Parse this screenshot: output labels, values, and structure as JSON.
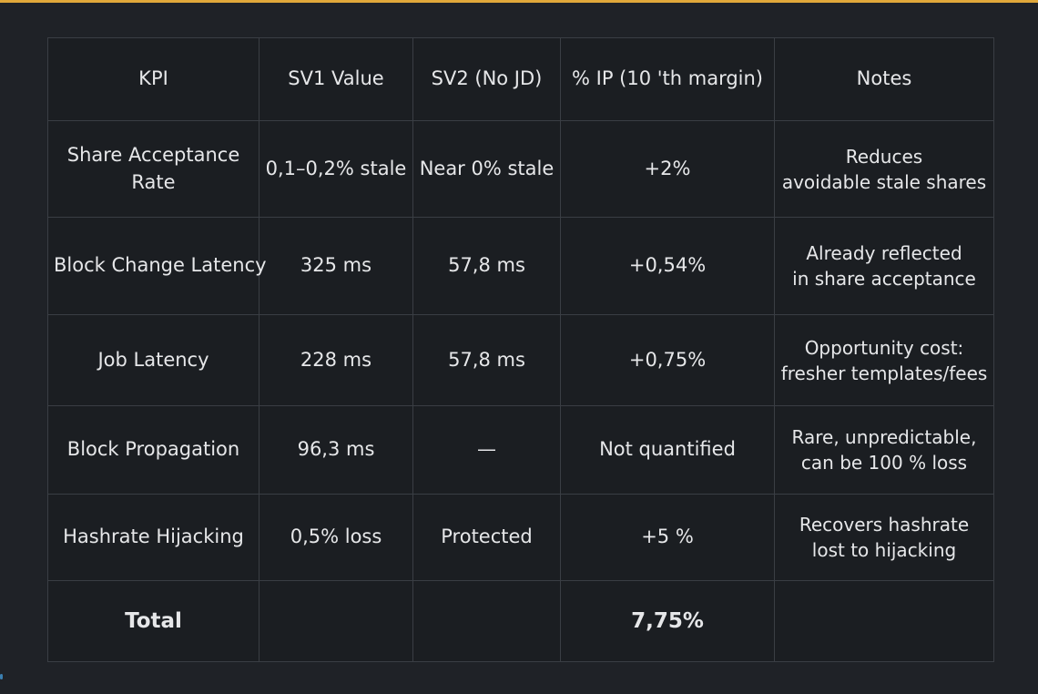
{
  "table": {
    "headers": [
      "KPI",
      "SV1 Value",
      "SV2 (No JD)",
      "% IP (10 'th margin)",
      "Notes"
    ],
    "rows": [
      {
        "kpi": [
          "Share Acceptance",
          "Rate"
        ],
        "sv1": "0,1–0,2% stale",
        "sv2": "Near 0% stale",
        "ip": "+2%",
        "notes": [
          "Reduces",
          "avoidable stale shares"
        ]
      },
      {
        "kpi": [
          "Block Change Latency"
        ],
        "sv1": "325 ms",
        "sv2": "57,8 ms",
        "ip": "+0,54%",
        "notes": [
          "Already reflected",
          "in share acceptance"
        ]
      },
      {
        "kpi": [
          "Job Latency"
        ],
        "sv1": "228 ms",
        "sv2": "57,8 ms",
        "ip": "+0,75%",
        "notes": [
          "Opportunity cost:",
          "fresher templates/fees"
        ]
      },
      {
        "kpi": [
          "Block Propagation"
        ],
        "sv1": "96,3 ms",
        "sv2": "—",
        "ip": "Not quantified",
        "notes": [
          "Rare, unpredictable,",
          "can be 100 % loss"
        ]
      },
      {
        "kpi": [
          "Hashrate Hijacking"
        ],
        "sv1": "0,5% loss",
        "sv2": "Protected",
        "ip": "+5 %",
        "notes": [
          "Recovers hashrate",
          "lost to hijacking"
        ]
      }
    ],
    "total": {
      "label": "Total",
      "ip": "7,75%"
    }
  },
  "colors": {
    "background": "#1f2227",
    "table_background": "#1b1e22",
    "border": "#3a3e44",
    "text": "#e6e7e9",
    "top_accent": "#e0a83a"
  }
}
